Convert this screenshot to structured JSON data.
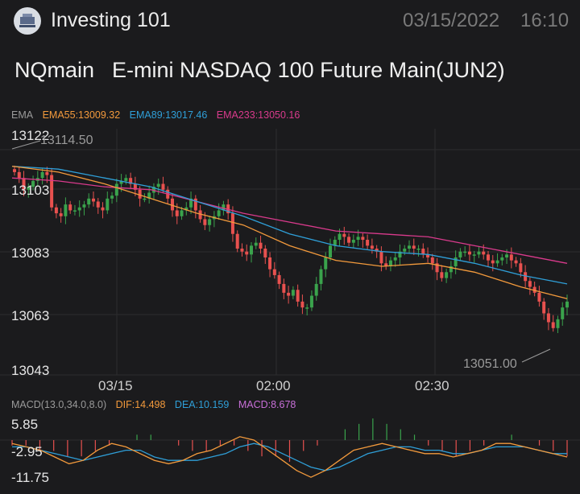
{
  "header": {
    "app_title": "Investing 101",
    "date": "03/15/2022",
    "time": "16:10"
  },
  "instrument": {
    "symbol": "NQmain",
    "name": "E-mini NASDAQ 100 Future Main(JUN2)"
  },
  "ema_legend": {
    "label": "EMA",
    "ema55": "EMA55:13009.32",
    "ema89": "EMA89:13017.46",
    "ema233": "EMA233:13050.16"
  },
  "macd_legend": {
    "label": "MACD(13.0,34.0,8.0)",
    "dif": "DIF:14.498",
    "dea": "DEA:10.159",
    "macd": "MACD:8.678"
  },
  "colors": {
    "up": "#3aa34c",
    "down": "#e8514f",
    "ema55": "#f39a3c",
    "ema89": "#2f9fd8",
    "ema233": "#d93a8c",
    "dif": "#f39a3c",
    "dea": "#2f9fd8",
    "macd": "#c86fd8"
  },
  "chart_data": [
    {
      "type": "candlestick",
      "y_ticks": [
        "13122",
        "13103",
        "13083",
        "13063",
        "13043"
      ],
      "x_ticks": [
        "03/15",
        "02:00",
        "02:30"
      ],
      "ylim": [
        13043,
        13122
      ],
      "annotations": {
        "high": "13114.50",
        "low": "13051.00"
      },
      "closes": [
        13110,
        13108,
        13104,
        13105,
        13107,
        13108,
        13110,
        13109,
        13098,
        13096,
        13095,
        13099,
        13097,
        13097,
        13098,
        13099,
        13101,
        13100,
        13098,
        13097,
        13101,
        13102,
        13106,
        13107,
        13108,
        13106,
        13104,
        13101,
        13101,
        13103,
        13105,
        13106,
        13104,
        13101,
        13097,
        13095,
        13097,
        13098,
        13101,
        13097,
        13094,
        13092,
        13094,
        13095,
        13097,
        13099,
        13096,
        13089,
        13084,
        13083,
        13082,
        13085,
        13086,
        13084,
        13081,
        13077,
        13075,
        13072,
        13069,
        13068,
        13070,
        13066,
        13064,
        13064,
        13068,
        13072,
        13077,
        13081,
        13085,
        13087,
        13089,
        13088,
        13086,
        13087,
        13088,
        13087,
        13085,
        13084,
        13083,
        13079,
        13078,
        13080,
        13081,
        13083,
        13084,
        13085,
        13084,
        13084,
        13082,
        13081,
        13079,
        13076,
        13074,
        13076,
        13078,
        13081,
        13083,
        13083,
        13082,
        13082,
        13083,
        13082,
        13080,
        13079,
        13080,
        13081,
        13082,
        13080,
        13079,
        13076,
        13073,
        13071,
        13069,
        13066,
        13062,
        13059,
        13057,
        13060,
        13064,
        13066
      ],
      "ema55": [
        13112,
        13110,
        13106,
        13101,
        13096,
        13092,
        13085,
        13080,
        13078,
        13079,
        13076,
        13071,
        13067
      ],
      "ema89": [
        13112,
        13111,
        13108,
        13105,
        13100,
        13095,
        13089,
        13085,
        13083,
        13082,
        13079,
        13075,
        13072
      ],
      "ema233": [
        13108,
        13107,
        13105,
        13104,
        13100,
        13096,
        13093,
        13090,
        13089,
        13088,
        13085,
        13082,
        13079
      ]
    },
    {
      "type": "macd",
      "y_ticks": [
        "5.85",
        "-2.95",
        "-11.75"
      ],
      "ylim": [
        -11.75,
        5.85
      ],
      "dif": [
        -1,
        -2,
        -3,
        -5,
        -7,
        -6,
        -3,
        -1,
        -2,
        -4,
        -6,
        -7,
        -6,
        -4,
        -3,
        -1,
        1,
        0,
        -3,
        -6,
        -9,
        -11,
        -9,
        -6,
        -3,
        -2,
        -1,
        -2,
        -3,
        -4,
        -4,
        -5,
        -4,
        -3,
        -1,
        -1,
        -2,
        -3,
        -4,
        -5
      ],
      "dea": [
        -2,
        -2,
        -3,
        -4,
        -5,
        -6,
        -5,
        -4,
        -3,
        -3,
        -5,
        -6,
        -6,
        -6,
        -5,
        -4,
        -2,
        -1,
        -2,
        -4,
        -6,
        -8,
        -9,
        -8,
        -6,
        -4,
        -3,
        -2,
        -2,
        -3,
        -3,
        -4,
        -4,
        -3,
        -2,
        -2,
        -2,
        -3,
        -4,
        -4
      ],
      "hist": [
        -1,
        -1,
        -2,
        -2,
        -3,
        -3,
        -2,
        -1,
        0,
        1,
        1,
        0,
        -1,
        -2,
        -2,
        -1,
        -1,
        -2,
        -3,
        -3,
        -4,
        -2,
        -1,
        0,
        2,
        3,
        4,
        3,
        2,
        1,
        -1,
        -2,
        -3,
        -2,
        -1,
        0,
        1,
        0,
        -1,
        -2,
        -3
      ]
    }
  ]
}
